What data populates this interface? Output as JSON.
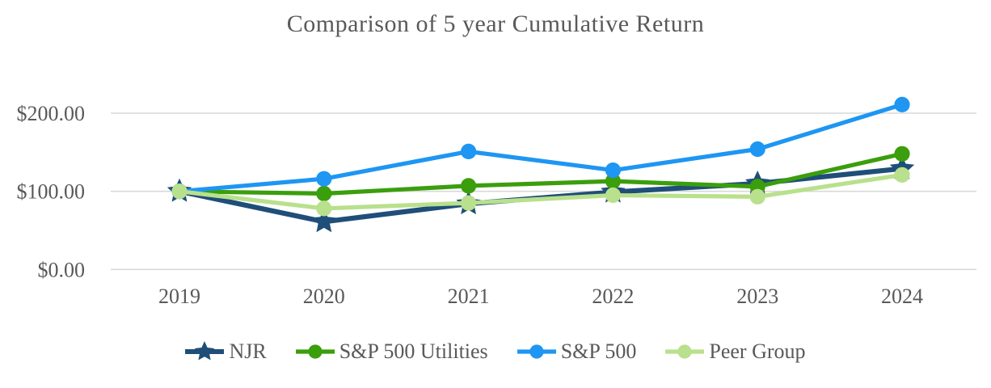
{
  "chart_data": {
    "type": "line",
    "title": "Comparison of 5 year Cumulative Return",
    "categories": [
      "2019",
      "2020",
      "2021",
      "2022",
      "2023",
      "2024"
    ],
    "series": [
      {
        "name": "NJR",
        "color": "#1F4E79",
        "marker": "star",
        "values": [
          100,
          61,
          84,
          99,
          110,
          129
        ]
      },
      {
        "name": "S&P 500 Utilities",
        "color": "#3B9E0D",
        "marker": "circle",
        "values": [
          100,
          97,
          107,
          113,
          106,
          148
        ]
      },
      {
        "name": "S&P 500",
        "color": "#1E96F2",
        "marker": "circle",
        "values": [
          100,
          116,
          151,
          127,
          154,
          211
        ]
      },
      {
        "name": "Peer Group",
        "color": "#B9E08C",
        "marker": "circle",
        "values": [
          100,
          78,
          85,
          95,
          93,
          121
        ]
      }
    ],
    "yticks": [
      {
        "value": 0,
        "label": "$0.00"
      },
      {
        "value": 100,
        "label": "$100.00"
      },
      {
        "value": 200,
        "label": "$200.00"
      }
    ],
    "ylim": [
      0,
      250
    ],
    "xlabel": "",
    "ylabel": "",
    "grid": "horizontal",
    "gridline_color": "#D9D9D9",
    "text_color": "#595959",
    "legend_position": "bottom"
  }
}
